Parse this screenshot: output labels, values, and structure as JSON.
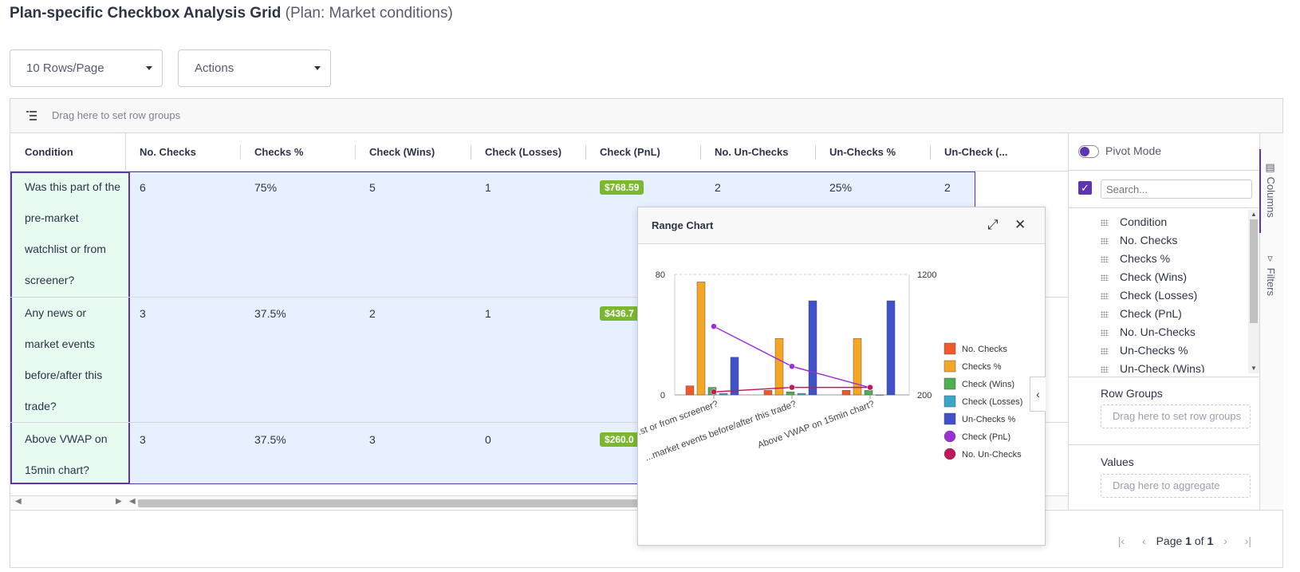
{
  "page": {
    "title_bold": "Plan-specific Checkbox Analysis Grid",
    "title_sub": "(Plan: Market conditions)"
  },
  "controls": {
    "rows_per_page": "10 Rows/Page",
    "actions": "Actions"
  },
  "grid": {
    "row_group_placeholder": "Drag here to set row groups",
    "columns": [
      "Condition",
      "No. Checks",
      "Checks %",
      "Check (Wins)",
      "Check (Losses)",
      "Check (PnL)",
      "No. Un-Checks",
      "Un-Checks %",
      "Un-Check (..."
    ],
    "rows": [
      {
        "condition": "Was this part of the pre-market watchlist or from screener?",
        "no_checks": "6",
        "checks_pct": "75%",
        "check_wins": "5",
        "check_losses": "1",
        "check_pnl": "$768.59",
        "no_unchecks": "2",
        "unchecks_pct": "25%",
        "uncheck_more": "2"
      },
      {
        "condition": "Any news or market events before/after this trade?",
        "no_checks": "3",
        "checks_pct": "37.5%",
        "check_wins": "2",
        "check_losses": "1",
        "check_pnl": "$436.7"
      },
      {
        "condition": "Above VWAP on 15min chart?",
        "no_checks": "3",
        "checks_pct": "37.5%",
        "check_wins": "3",
        "check_losses": "0",
        "check_pnl": "$260.0"
      }
    ],
    "pager": {
      "prefix": "Page",
      "current": "1",
      "of": "of",
      "total": "1"
    }
  },
  "tool_panel": {
    "pivot_mode": "Pivot Mode",
    "search_placeholder": "Search...",
    "column_items": [
      "Condition",
      "No. Checks",
      "Checks %",
      "Check (Wins)",
      "Check (Losses)",
      "Check (PnL)",
      "No. Un-Checks",
      "Un-Checks %",
      "Un-Check (Wins)"
    ],
    "row_groups_label": "Row Groups",
    "row_groups_drop": "Drag here to set row groups",
    "values_label": "Values",
    "values_drop": "Drag here to aggregate",
    "tab_columns": "Columns",
    "tab_filters": "Filters"
  },
  "chart_popup": {
    "title": "Range Chart"
  },
  "chart_data": {
    "type": "bar",
    "title": "Range Chart",
    "categories": [
      "Was this part of the pre-market watchlist or from screener?",
      "Any news or market events before/after this trade?",
      "Above VWAP on 15min chart?"
    ],
    "category_labels_visible": [
      "...st or from screener?",
      "...market events before/after this trade?",
      "Above VWAP on 15min chart?"
    ],
    "y_left": {
      "min": 0,
      "max": 80,
      "ticks": [
        "0",
        "80"
      ]
    },
    "y_right": {
      "min": 200,
      "max": 1200,
      "ticks": [
        "200",
        "1200"
      ]
    },
    "series": [
      {
        "name": "No. Checks",
        "kind": "bar",
        "axis": "left",
        "color": "#f0592a",
        "values": [
          6,
          3,
          3
        ]
      },
      {
        "name": "Checks %",
        "kind": "bar",
        "axis": "left",
        "color": "#f5a623",
        "values": [
          75,
          37.5,
          37.5
        ]
      },
      {
        "name": "Check (Wins)",
        "kind": "bar",
        "axis": "left",
        "color": "#4caf50",
        "values": [
          5,
          2,
          3
        ]
      },
      {
        "name": "Check (Losses)",
        "kind": "bar",
        "axis": "left",
        "color": "#3aa6c9",
        "values": [
          1,
          1,
          0
        ]
      },
      {
        "name": "Un-Checks %",
        "kind": "bar",
        "axis": "left",
        "color": "#3f51c9",
        "values": [
          25,
          62.5,
          62.5
        ]
      },
      {
        "name": "Check (PnL)",
        "kind": "line",
        "axis": "right",
        "color": "#9b30d9",
        "values": [
          768.59,
          436.7,
          260.0
        ]
      },
      {
        "name": "No. Un-Checks",
        "kind": "line",
        "axis": "left",
        "color": "#c2185b",
        "values": [
          2,
          5,
          5
        ]
      }
    ],
    "legend_position": "right",
    "grid": true
  }
}
